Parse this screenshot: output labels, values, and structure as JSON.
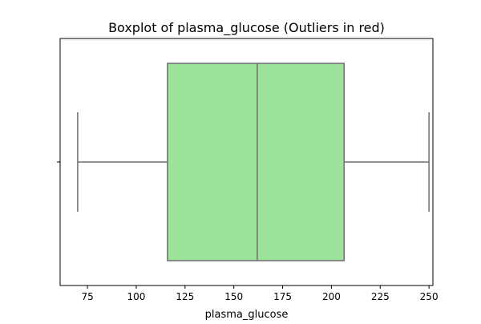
{
  "chart_data": {
    "type": "boxplot",
    "title": "Boxplot of plasma_glucose (Outliers in red)",
    "xlabel": "plasma_glucose",
    "ylabel": "",
    "orientation": "horizontal",
    "xlim": [
      61,
      252
    ],
    "x_ticks": [
      75,
      100,
      125,
      150,
      175,
      200,
      225,
      250
    ],
    "grid": false,
    "box": {
      "whisker_low": 70,
      "q1": 116,
      "median": 162,
      "q3": 206.5,
      "whisker_high": 250,
      "outliers": []
    },
    "colors": {
      "box_fill": "#9de39b",
      "box_edge": "#6e6e6e",
      "outlier": "#ff0000"
    }
  }
}
